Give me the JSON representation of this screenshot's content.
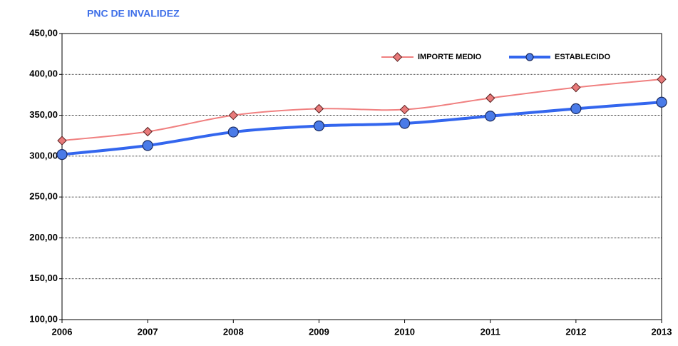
{
  "chart_data": {
    "type": "line",
    "title": "PNC DE INVALIDEZ",
    "categories": [
      "2006",
      "2007",
      "2008",
      "2009",
      "2010",
      "2011",
      "2012",
      "2013"
    ],
    "series": [
      {
        "name": "IMPORTE MEDIO",
        "color": "#f08080",
        "marker": "diamond",
        "values": [
          319,
          330,
          350,
          358,
          357,
          371,
          384,
          394
        ]
      },
      {
        "name": "ESTABLECIDO",
        "color": "#3366ee",
        "marker": "circle",
        "values": [
          302,
          313,
          329.5,
          337,
          340,
          349,
          358,
          366
        ]
      }
    ],
    "ylim": [
      100,
      450
    ],
    "yticks": [
      {
        "value": 100,
        "label": "100,00"
      },
      {
        "value": 150,
        "label": "150,00"
      },
      {
        "value": 200,
        "label": "200,00"
      },
      {
        "value": 250,
        "label": "250,00"
      },
      {
        "value": 300,
        "label": "300,00"
      },
      {
        "value": 350,
        "label": "350,00"
      },
      {
        "value": 400,
        "label": "400,00"
      },
      {
        "value": 450,
        "label": "450,00"
      }
    ],
    "grid": true,
    "smooth": true,
    "legend": "top-right"
  }
}
